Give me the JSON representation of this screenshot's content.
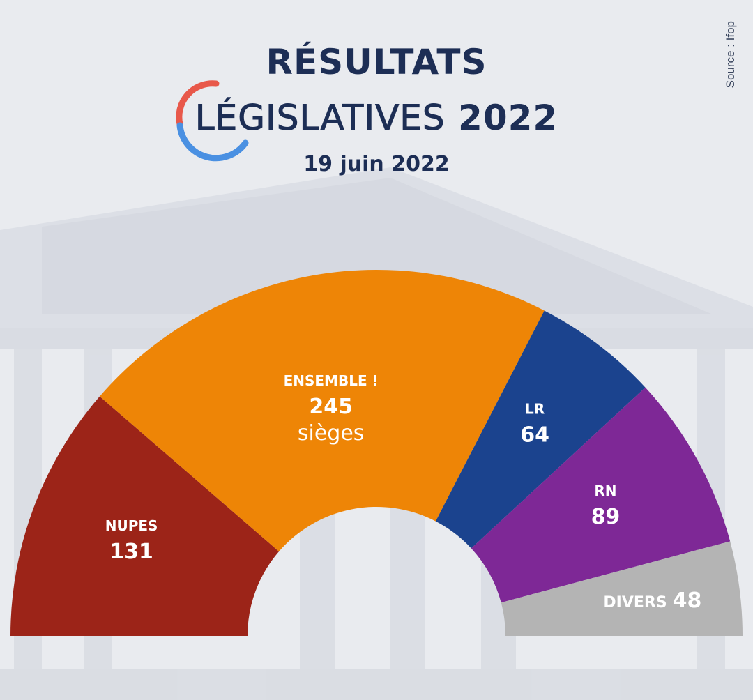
{
  "header": {
    "title_line1": "RÉSULTATS",
    "title_line2_word": "LÉGISLATIVES",
    "title_line2_year": "2022",
    "date": "19 juin 2022",
    "source": "Source : Ifop"
  },
  "colors": {
    "background": "#e9ebef",
    "title": "#1d2e55",
    "logo_red": "#e8584a",
    "logo_blue": "#4a90e2",
    "building": "#cfd3dc"
  },
  "chart_data": {
    "type": "pie",
    "shape": "hemicycle",
    "total_seats": 577,
    "series": [
      {
        "name": "NUPES",
        "value": 131,
        "color": "#9c2418"
      },
      {
        "name": "ENSEMBLE !",
        "value": 245,
        "unit": "sièges",
        "color": "#ee8506"
      },
      {
        "name": "LR",
        "value": 64,
        "color": "#1b438e"
      },
      {
        "name": "RN",
        "value": 89,
        "color": "#7e2896"
      },
      {
        "name": "DIVERS",
        "value": 48,
        "color": "#b4b4b4"
      }
    ]
  }
}
